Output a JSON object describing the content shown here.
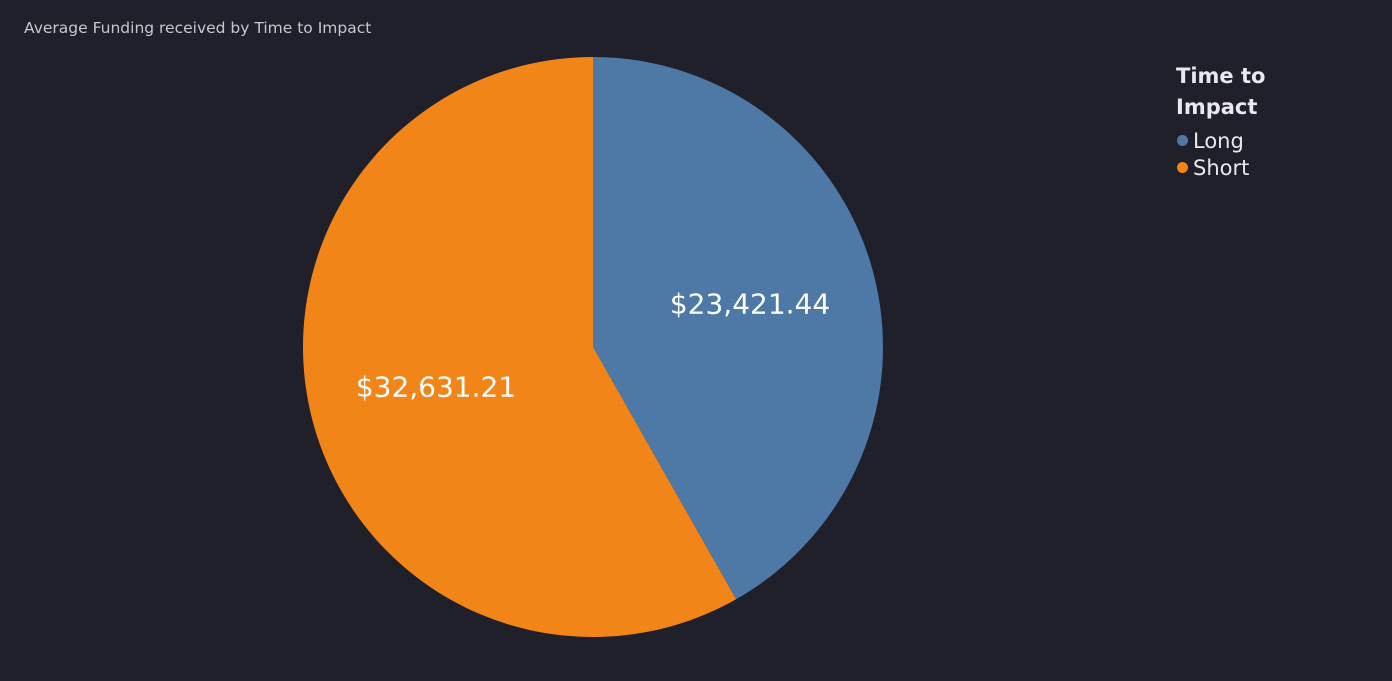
{
  "colors": {
    "background": "#20202a",
    "long": "#4e79a7",
    "short": "#f28518"
  },
  "chart_data": {
    "type": "pie",
    "title": "Average Funding received by Time to Impact",
    "legend_title": "Time to Impact",
    "legend_position": "top-right",
    "slices": [
      {
        "name": "Long",
        "value": 23421.44,
        "label": "$23,421.44",
        "color": "#4e79a7"
      },
      {
        "name": "Short",
        "value": 32631.21,
        "label": "$32,631.21",
        "color": "#f28518"
      }
    ]
  }
}
